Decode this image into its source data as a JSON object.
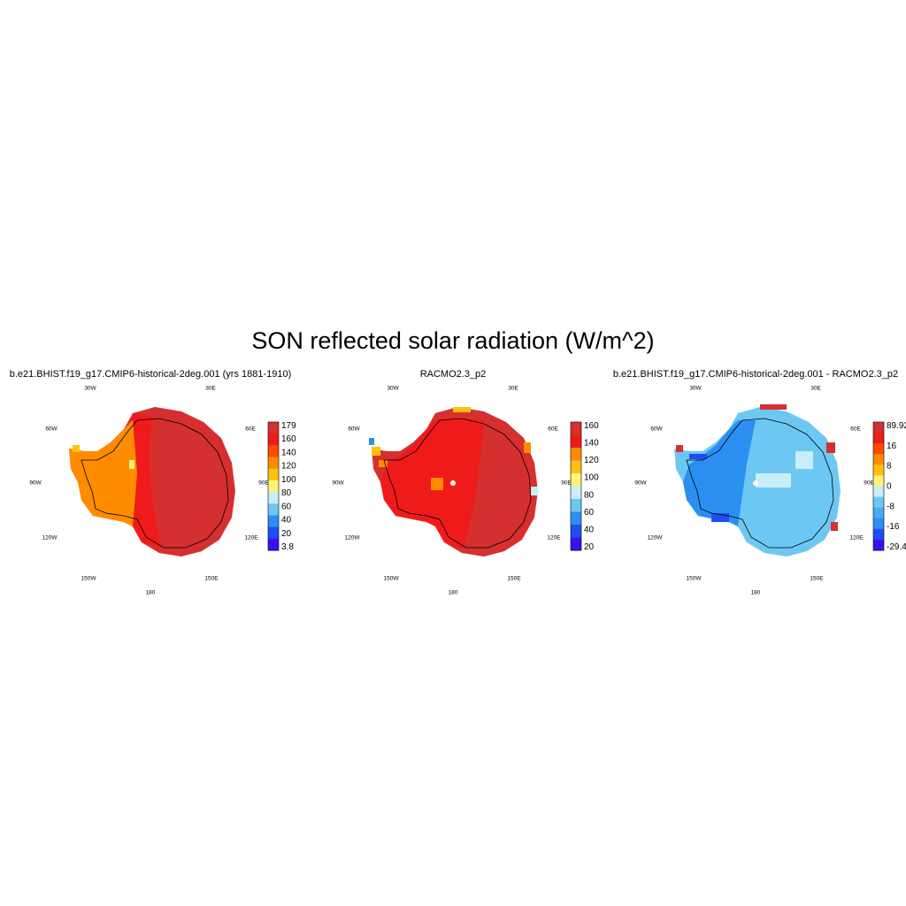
{
  "title": "SON reflected solar radiation (W/m^2)",
  "panels": [
    {
      "title": "b.e21.BHIST.f19_g17.CMIP6-historical-2deg.001 (yrs 1881-1910)",
      "colorbar": {
        "labels": [
          "179",
          "160",
          "140",
          "120",
          "100",
          "80",
          "60",
          "40",
          "20",
          "3.8"
        ],
        "colors": [
          "#d62f2f",
          "#ef1b1b",
          "#ff4a00",
          "#ff8c00",
          "#ffc20e",
          "#fff27a",
          "#c8eefa",
          "#6cc8f2",
          "#2b8ff2",
          "#1f4ef0",
          "#3a10f5"
        ]
      }
    },
    {
      "title": "RACMO2.3_p2",
      "colorbar": {
        "labels": [
          "160",
          "140",
          "120",
          "100",
          "80",
          "60",
          "40",
          "20"
        ],
        "colors": [
          "#d62f2f",
          "#ef1b1b",
          "#ff8c00",
          "#ffc20e",
          "#fff27a",
          "#c8eefa",
          "#6cc8f2",
          "#2b8ff2",
          "#1f4ef0",
          "#3a10f5"
        ]
      }
    },
    {
      "title": "b.e21.BHIST.f19_g17.CMIP6-historical-2deg.001 - RACMO2.3_p2",
      "colorbar": {
        "labels": [
          "89.92",
          "16",
          "8",
          "0",
          "-8",
          "-16",
          "-29.42"
        ],
        "colors": [
          "#d62f2f",
          "#ef1b1b",
          "#ff4a00",
          "#ff8c00",
          "#ffc20e",
          "#fff27a",
          "#c8eefa",
          "#6cc8f2",
          "#4aa8f2",
          "#2b8ff2",
          "#1f4ef0",
          "#3a10f5"
        ]
      }
    }
  ],
  "lon_labels": [
    "30W",
    "30E",
    "60W",
    "60E",
    "90W",
    "90E",
    "120W",
    "120E",
    "150W",
    "150E",
    "180"
  ],
  "colors": {
    "orange": "#ff8c00",
    "red": "#ef1b1b",
    "darkred": "#d62f2f",
    "lightblue": "#6cc8f2",
    "midblue": "#2b8ff2",
    "paleblue": "#c8eefa",
    "deepblue": "#1f4ef0"
  }
}
